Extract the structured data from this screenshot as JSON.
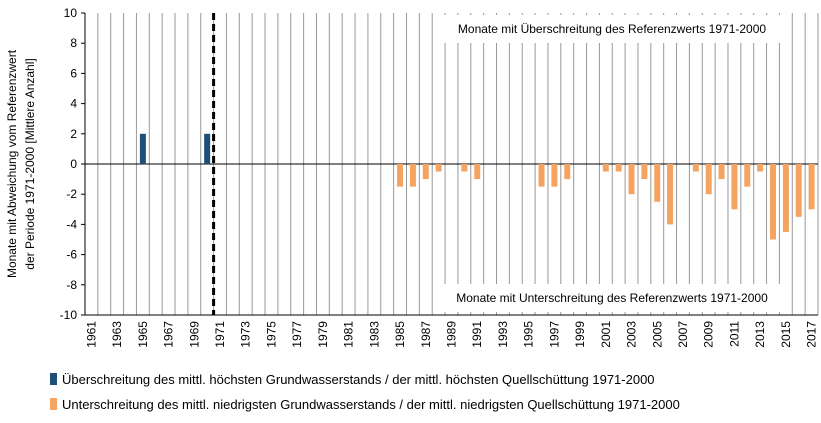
{
  "chart_data": {
    "type": "bar",
    "ylabel": [
      "Monate mit Abweichung vom Referenzwert",
      "der Periode 1971-2000 [Mittlere Anzahl]"
    ],
    "annotations": [
      "Monate mit Überschreitung des Referenzwerts 1971-2000",
      "Monate mit Unterschreitung des Referenzwerts 1971-2000"
    ],
    "categories": [
      "1961",
      null,
      "1963",
      null,
      "1965",
      null,
      "1967",
      null,
      "1969",
      null,
      "1971",
      null,
      "1973",
      null,
      "1975",
      null,
      "1977",
      null,
      "1979",
      null,
      "1981",
      null,
      "1983",
      null,
      "1985",
      null,
      "1987",
      null,
      "1989",
      null,
      "1991",
      null,
      "1993",
      null,
      "1995",
      null,
      "1997",
      null,
      "1999",
      null,
      "2001",
      null,
      "2003",
      null,
      "2005",
      null,
      "2007",
      null,
      "2009",
      null,
      "2011",
      null,
      "2013",
      null,
      "2015",
      null,
      "2017"
    ],
    "series": [
      {
        "name": "Überschreitung des mittl. höchsten Grundwasserstands /  der mittl. höchsten Quellschüttung 1971-2000",
        "color": "#1f4e79",
        "values": [
          0,
          0,
          0,
          0,
          2,
          0,
          0,
          0,
          0,
          2,
          0,
          0,
          0,
          0,
          0,
          0,
          0,
          0,
          0,
          0,
          0,
          0,
          0,
          0,
          0,
          0,
          0,
          0,
          0,
          0,
          0,
          0,
          0,
          0,
          0,
          0,
          0,
          0,
          0,
          0,
          0,
          0,
          0,
          0,
          0,
          0,
          0,
          0,
          0,
          0,
          0,
          0,
          0,
          0,
          0,
          0,
          0
        ]
      },
      {
        "name": "Unterschreitung des mittl. niedrigsten Grundwasserstands /  der mittl. niedrigsten Quellschüttung 1971-2000",
        "color": "#f4a460",
        "values": [
          0,
          0,
          0,
          0,
          0,
          0,
          0,
          0,
          0,
          0,
          0,
          0,
          0,
          0,
          0,
          0,
          0,
          0,
          0,
          0,
          0,
          0,
          0,
          0,
          -1.5,
          -1.5,
          -1,
          -0.5,
          0,
          -0.5,
          -1,
          0,
          0,
          0,
          0,
          -1.5,
          -1.5,
          -1,
          0,
          0,
          -0.5,
          -0.5,
          -2,
          -1,
          -2.5,
          -4,
          0,
          -0.5,
          -2,
          -1,
          -3,
          -1.5,
          -0.5,
          -5,
          -4.5,
          -3.5,
          -3
        ]
      }
    ],
    "ylim": [
      -10,
      10
    ],
    "yticks": [
      -10,
      -8,
      -6,
      -4,
      -2,
      0,
      2,
      4,
      6,
      8,
      10
    ]
  }
}
